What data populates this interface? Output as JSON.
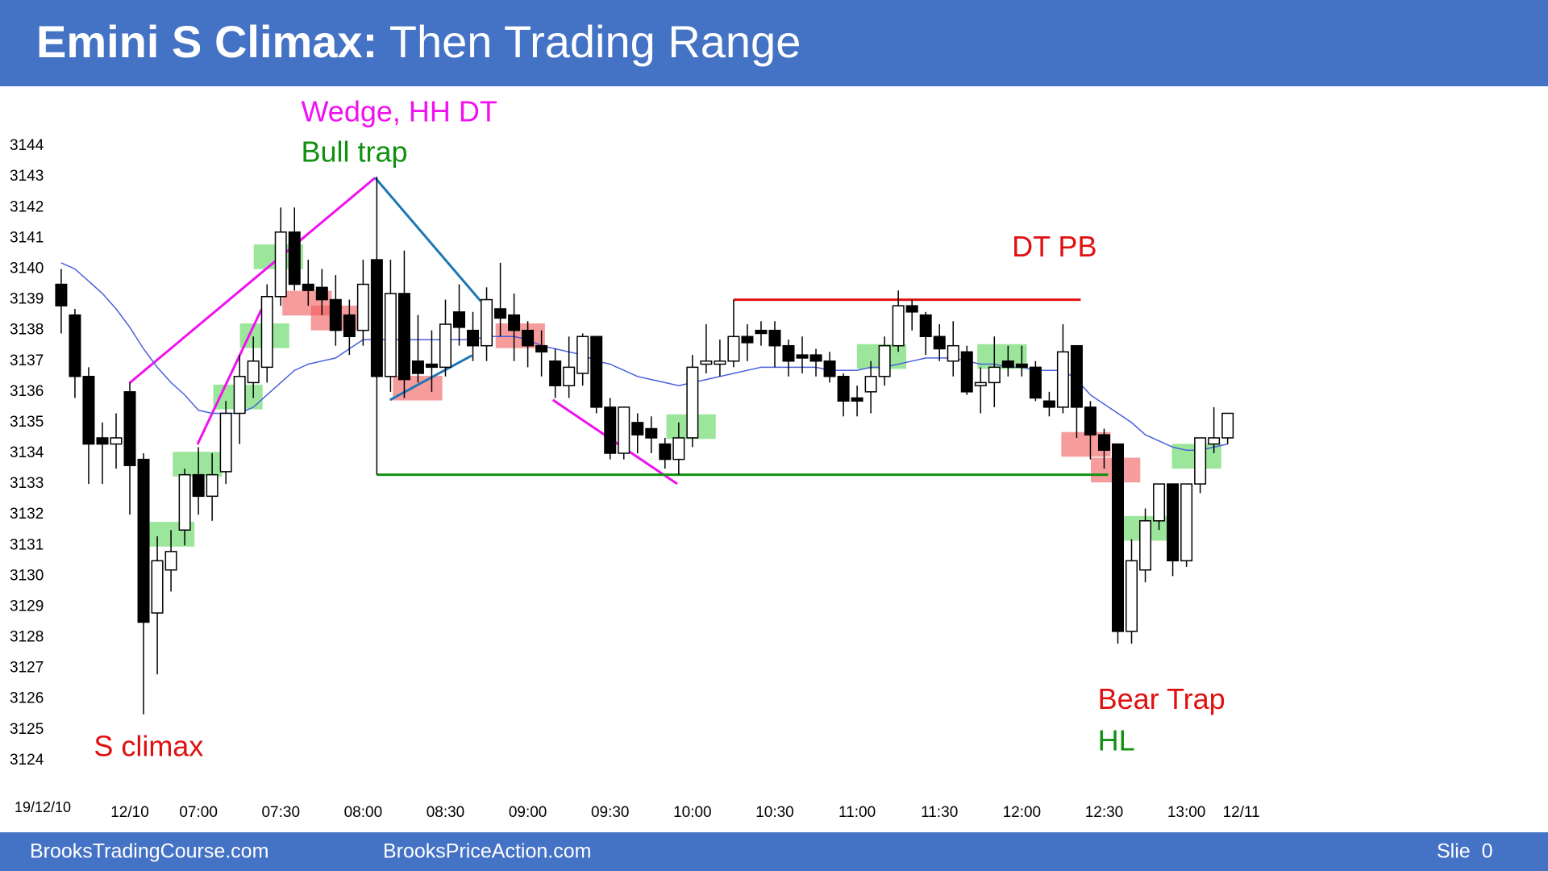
{
  "header": {
    "title_bold": "Emini S Climax:",
    "title_rest": " Then Trading Range"
  },
  "footer": {
    "left": "BrooksTradingCourse.com",
    "middle": "BrooksPriceAction.com",
    "right": "Slie  0"
  },
  "chart_data": {
    "type": "candlestick",
    "date_label": "19/12/10",
    "categories": [
      null,
      null,
      null,
      null,
      null,
      "12/10",
      null,
      null,
      null,
      null,
      "07:00",
      null,
      null,
      null,
      null,
      null,
      "07:30",
      null,
      null,
      null,
      null,
      null,
      "08:00",
      null,
      null,
      null,
      null,
      null,
      "08:30",
      null,
      null,
      null,
      null,
      null,
      "09:00",
      null,
      null,
      null,
      null,
      null,
      "09:30",
      null,
      null,
      null,
      null,
      null,
      "10:00",
      null,
      null,
      null,
      null,
      null,
      "10:30",
      null,
      null,
      null,
      null,
      null,
      "11:00",
      null,
      null,
      null,
      null,
      null,
      "11:30",
      null,
      null,
      null,
      null,
      null,
      "12:00",
      null,
      null,
      null,
      null,
      null,
      "12:30",
      null,
      null,
      null,
      null,
      null,
      "13:00",
      null,
      null,
      null,
      "12/11"
    ],
    "open": [
      3139.5,
      3138.5,
      3136.5,
      3134.5,
      3134.3,
      3136,
      3133.8,
      3128.8,
      3130.2,
      3131.5,
      3133.3,
      3132.6,
      3133.4,
      3135.3,
      3136.3,
      3136.8,
      3139.1,
      3141.2,
      3139.5,
      3139.4,
      3139,
      3138.5,
      3138,
      3140.3,
      3136.5,
      3139.2,
      3137,
      3136.9,
      3136.8,
      3138.6,
      3138,
      3137.5,
      3138.7,
      3138.5,
      3138,
      3137.5,
      3137,
      3136.2,
      3136.6,
      3137.8,
      3135.5,
      3134,
      3135,
      3134.8,
      3134.3,
      3133.8,
      3134.5,
      3136.9,
      3136.9,
      3137,
      3137.8,
      3138,
      3138,
      3137.5,
      3137.2,
      3137.2,
      3137,
      3136.5,
      3135.8,
      3136,
      3136.5,
      3137.5,
      3138.8,
      3138.5,
      3137.8,
      3137,
      3137.3,
      3136.2,
      3136.3,
      3137,
      3136.9,
      3136.8,
      3135.7,
      3135.5,
      3137.5,
      3135.5,
      3134.6,
      3134.3,
      3128.2,
      3130.2,
      3131.8,
      3133,
      3130.5,
      3133,
      3134.3,
      3134.5,
      null
    ],
    "high": [
      3140,
      3138.7,
      3136.8,
      3135,
      3135.3,
      3136.3,
      3134,
      3131.3,
      3131.5,
      3133.5,
      3134.2,
      3134,
      3135.7,
      3137.2,
      3137.8,
      3139.5,
      3142,
      3142,
      3140.3,
      3140,
      3139.8,
      3139,
      3140.3,
      3143,
      3140.3,
      3140.6,
      3138.5,
      3138,
      3139,
      3139.5,
      3138.6,
      3139.4,
      3140.2,
      3139.2,
      3138.3,
      3138,
      3137.4,
      3137.8,
      3137.9,
      3137.8,
      3135.8,
      3135.5,
      3135.3,
      3135.2,
      3134.5,
      3135,
      3137.2,
      3138.2,
      3137.7,
      3139,
      3138.2,
      3138.3,
      3138.3,
      3137.7,
      3137.8,
      3137.4,
      3137.3,
      3136.6,
      3136.2,
      3137,
      3137.8,
      3139.3,
      3139,
      3138.6,
      3138.2,
      3138.3,
      3137.5,
      3136.8,
      3137.8,
      3137.5,
      3137.5,
      3137,
      3136,
      3138.2,
      3137.5,
      3135.7,
      3134.8,
      3134.3,
      3131.2,
      3132.2,
      3133,
      3133,
      3133,
      3134.5,
      3135.5,
      3135.3,
      null
    ],
    "low": [
      3137.9,
      3135.8,
      3133,
      3133,
      3133.5,
      3132,
      3125.5,
      3126.8,
      3129.5,
      3131,
      3132,
      3131.8,
      3133,
      3134.3,
      3135.8,
      3136.3,
      3138.8,
      3139.3,
      3138.8,
      3138.5,
      3137.5,
      3137.2,
      3137.5,
      3133.3,
      3136,
      3135.8,
      3136.3,
      3136,
      3136.5,
      3137.5,
      3137,
      3137,
      3137.8,
      3137,
      3136.8,
      3136.5,
      3135.8,
      3135.8,
      3136.2,
      3135.3,
      3133.8,
      3133.8,
      3134,
      3134,
      3133.5,
      3133.3,
      3134.2,
      3136.6,
      3136.5,
      3136.8,
      3137,
      3137.5,
      3136.8,
      3136.5,
      3136.6,
      3136.5,
      3136.3,
      3135.2,
      3135.2,
      3135.3,
      3136.2,
      3137.3,
      3138,
      3137.2,
      3137,
      3136.5,
      3135.9,
      3135.3,
      3135.5,
      3136.5,
      3136.5,
      3135.7,
      3135.2,
      3135.3,
      3134.5,
      3133.8,
      3133.5,
      3127.8,
      3127.8,
      3129.8,
      3131.5,
      3130,
      3130.3,
      3132.7,
      3134,
      3134.3,
      null
    ],
    "close": [
      3138.8,
      3136.5,
      3134.3,
      3134.3,
      3134.5,
      3133.6,
      3128.5,
      3130.5,
      3130.8,
      3133.3,
      3132.6,
      3133.3,
      3135.3,
      3136.5,
      3137,
      3139.1,
      3141.2,
      3139.5,
      3139.3,
      3139,
      3138,
      3137.8,
      3139.5,
      3136.5,
      3139.2,
      3136.4,
      3136.6,
      3136.8,
      3138.2,
      3138.1,
      3137.5,
      3139,
      3138.4,
      3138,
      3137.5,
      3137.3,
      3136.2,
      3136.8,
      3137.8,
      3135.5,
      3134,
      3135.5,
      3134.6,
      3134.5,
      3133.8,
      3134.5,
      3136.8,
      3137,
      3137,
      3137.8,
      3137.6,
      3137.9,
      3137.5,
      3137,
      3137.1,
      3137,
      3136.5,
      3135.7,
      3135.7,
      3136.5,
      3137.5,
      3138.8,
      3138.6,
      3137.8,
      3137.4,
      3137.5,
      3136,
      3136.3,
      3136.8,
      3136.8,
      3136.8,
      3135.8,
      3135.5,
      3137.3,
      3135.5,
      3134.6,
      3134.1,
      3128.2,
      3130.5,
      3131.8,
      3133,
      3130.5,
      3133,
      3134.5,
      3134.5,
      3135.3,
      null
    ],
    "up_color": "#ffffff",
    "down_color": "#000000",
    "ma": {
      "color": "#4a5fdc",
      "values": [
        3140.2,
        3140,
        3139.6,
        3139.2,
        3138.7,
        3138.1,
        3137.4,
        3136.8,
        3136.3,
        3135.9,
        3135.4,
        3135.3,
        3135.3,
        3135.3,
        3135.5,
        3135.9,
        3136.3,
        3136.7,
        3136.9,
        3137,
        3137.1,
        3137.4,
        3137.7,
        3137.7,
        3137.7,
        3137.7,
        3137.7,
        3137.7,
        3137.7,
        3137.7,
        3137.7,
        3137.8,
        3137.8,
        3137.8,
        3137.7,
        3137.5,
        3137.4,
        3137.3,
        3137.2,
        3137,
        3136.9,
        3136.7,
        3136.5,
        3136.4,
        3136.3,
        3136.2,
        3136.3,
        3136.4,
        3136.5,
        3136.6,
        3136.7,
        3136.8,
        3136.8,
        3136.8,
        3136.8,
        3136.8,
        3136.7,
        3136.7,
        3136.7,
        3136.8,
        3136.8,
        3136.9,
        3137,
        3137.1,
        3137.1,
        3137.1,
        3137,
        3136.9,
        3136.9,
        3136.8,
        3136.8,
        3136.7,
        3136.7,
        3136.7,
        3136.4,
        3135.9,
        3135.6,
        3135.3,
        3135,
        3134.6,
        3134.4,
        3134.2,
        3134.1,
        3134.1,
        3134.2,
        3134.3,
        null
      ]
    },
    "levels": [
      {
        "value": 3139,
        "color": "#e01010"
      },
      {
        "value": 3133.3,
        "color": "#109010"
      }
    ],
    "annotations": [
      {
        "text": "Wedge, HH DT",
        "color": "#f010f0"
      },
      {
        "text": "Bull trap",
        "color": "#109010"
      },
      {
        "text": "DT PB",
        "color": "#e01010"
      },
      {
        "text": "S climax",
        "color": "#e01010"
      },
      {
        "text": "Bear Trap",
        "color": "#e01010"
      },
      {
        "text": "HL",
        "color": "#109010"
      }
    ],
    "ylim": [
      3122.5,
      3145.5
    ],
    "yticks": [
      3124,
      3125,
      3126,
      3127,
      3128,
      3129,
      3130,
      3131,
      3132,
      3133,
      3134,
      3135,
      3136,
      3137,
      3138,
      3139,
      3140,
      3141,
      3142,
      3143,
      3144
    ]
  }
}
